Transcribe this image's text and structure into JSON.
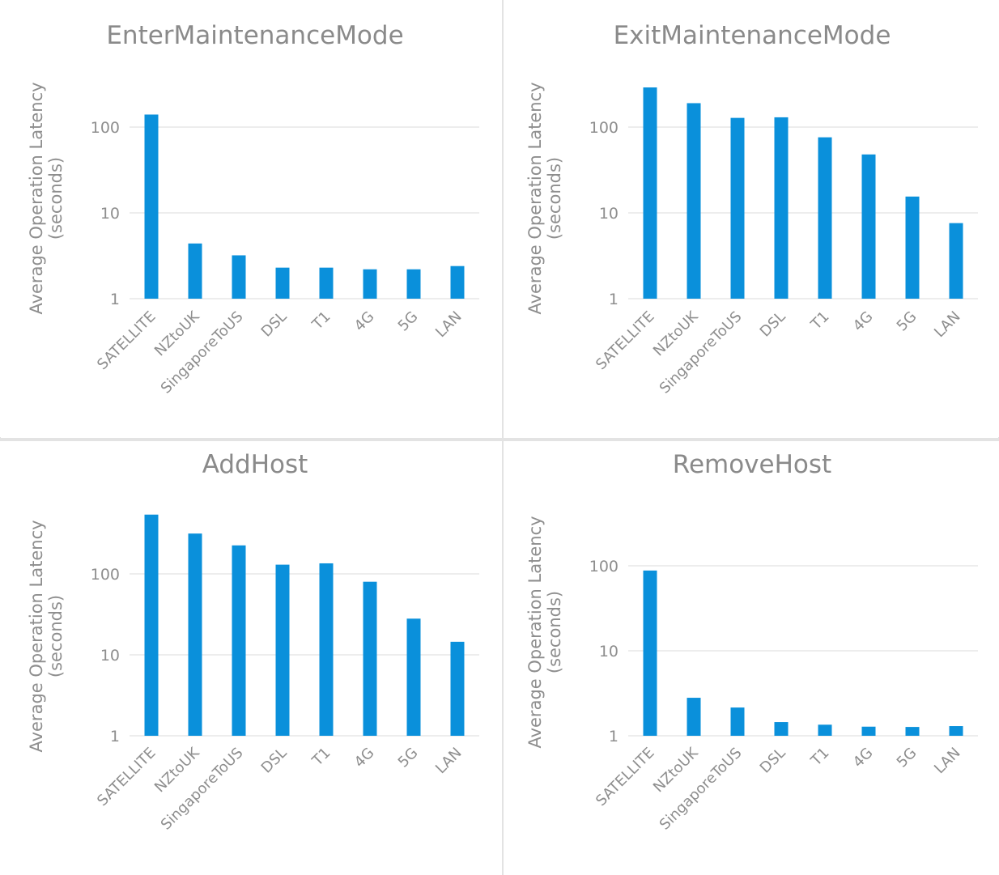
{
  "colors": {
    "bar": "#0a90db",
    "grid": "#e2e2e2",
    "text": "#8e8e8e",
    "divider": "#e3e3e3"
  },
  "chart_data": [
    {
      "type": "bar",
      "title": "EnterMaintenanceMode",
      "ylabel": "Average Operation Latency (seconds)",
      "ylabel_lines": [
        "Average Operation Latency",
        "(seconds)"
      ],
      "yscale": "log",
      "ytick_labels": [
        "1",
        "10",
        "100"
      ],
      "ylim": [
        1,
        500
      ],
      "grid": true,
      "categories": [
        "SATELLITE",
        "NZtoUK",
        "SingaporeToUS",
        "DSL",
        "T1",
        "4G",
        "5G",
        "LAN"
      ],
      "values": [
        140,
        4.4,
        3.2,
        2.3,
        2.3,
        2.2,
        2.2,
        2.4
      ]
    },
    {
      "type": "bar",
      "title": "ExitMaintenanceMode",
      "ylabel": "Average Operation Latency (seconds)",
      "ylabel_lines": [
        "Average Operation Latency",
        "(seconds)"
      ],
      "yscale": "log",
      "ytick_labels": [
        "1",
        "10",
        "100"
      ],
      "ylim": [
        1,
        500
      ],
      "grid": true,
      "categories": [
        "SATELLITE",
        "NZtoUK",
        "SingaporeToUS",
        "DSL",
        "T1",
        "4G",
        "5G",
        "LAN"
      ],
      "values": [
        290,
        190,
        128,
        130,
        76,
        48,
        15.5,
        7.6
      ]
    },
    {
      "type": "bar",
      "title": "AddHost",
      "ylabel": "Average Operation Latency (seconds)",
      "ylabel_lines": [
        "Average Operation Latency",
        "(seconds)"
      ],
      "yscale": "log",
      "ytick_labels": [
        "1",
        "10",
        "100"
      ],
      "ylim": [
        1,
        1000
      ],
      "grid": true,
      "categories": [
        "SATELLITE",
        "NZtoUK",
        "SingaporeToUS",
        "DSL",
        "T1",
        "4G",
        "5G",
        "LAN"
      ],
      "values": [
        540,
        315,
        225,
        130,
        135,
        80,
        28,
        14.5
      ]
    },
    {
      "type": "bar",
      "title": "RemoveHost",
      "ylabel": "Average Operation Latency (seconds)",
      "ylabel_lines": [
        "Average Operation Latency",
        "(seconds)"
      ],
      "yscale": "log",
      "ytick_labels": [
        "1",
        "10",
        "100"
      ],
      "ylim": [
        1,
        500
      ],
      "grid": true,
      "categories": [
        "SATELLITE",
        "NZtoUK",
        "SingaporeToUS",
        "DSL",
        "T1",
        "4G",
        "5G",
        "LAN"
      ],
      "values": [
        88,
        2.8,
        2.15,
        1.45,
        1.35,
        1.28,
        1.27,
        1.3
      ]
    }
  ]
}
